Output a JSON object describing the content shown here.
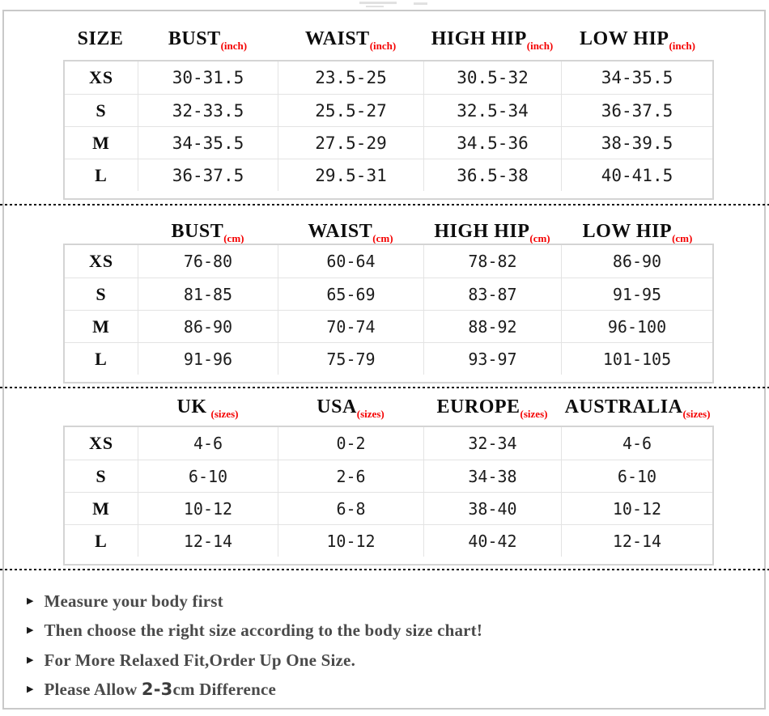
{
  "page": {
    "background": "#ffffff",
    "frame_border_color": "#c9c9c9",
    "accent_red": "#f40000"
  },
  "tables": [
    {
      "id": "body-measurements-inch",
      "corner_label": "SIZE",
      "unit": "(inch)",
      "columns": [
        "BUST",
        "WAIST",
        "HIGH HIP",
        "LOW HIP"
      ],
      "rows": [
        {
          "size": "XS",
          "values": [
            "30-31.5",
            "23.5-25",
            "30.5-32",
            "34-35.5"
          ]
        },
        {
          "size": "S",
          "values": [
            "32-33.5",
            "25.5-27",
            "32.5-34",
            "36-37.5"
          ]
        },
        {
          "size": "M",
          "values": [
            "34-35.5",
            "27.5-29",
            "34.5-36",
            "38-39.5"
          ]
        },
        {
          "size": "L",
          "values": [
            "36-37.5",
            "29.5-31",
            "36.5-38",
            "40-41.5"
          ]
        }
      ]
    },
    {
      "id": "body-measurements-cm",
      "corner_label": "",
      "unit": "(cm)",
      "columns": [
        "BUST",
        "WAIST",
        "HIGH HIP",
        "LOW HIP"
      ],
      "rows": [
        {
          "size": "XS",
          "values": [
            "76-80",
            "60-64",
            "78-82",
            "86-90"
          ]
        },
        {
          "size": "S",
          "values": [
            "81-85",
            "65-69",
            "83-87",
            "91-95"
          ]
        },
        {
          "size": "M",
          "values": [
            "86-90",
            "70-74",
            "88-92",
            "96-100"
          ]
        },
        {
          "size": "L",
          "values": [
            "91-96",
            "75-79",
            "93-97",
            "101-105"
          ]
        }
      ]
    },
    {
      "id": "international-size-conversion",
      "corner_label": "",
      "unit": "(sizes)",
      "columns": [
        "UK",
        "USA",
        "EUROPE",
        "AUSTRALIA"
      ],
      "rows": [
        {
          "size": "XS",
          "values": [
            "4-6",
            "0-2",
            "32-34",
            "4-6"
          ]
        },
        {
          "size": "S",
          "values": [
            "6-10",
            "2-6",
            "34-38",
            "6-10"
          ]
        },
        {
          "size": "M",
          "values": [
            "10-12",
            "6-8",
            "38-40",
            "10-12"
          ]
        },
        {
          "size": "L",
          "values": [
            "12-14",
            "10-12",
            "40-42",
            "12-14"
          ]
        }
      ]
    }
  ],
  "notes": {
    "bullet_glyph": "▶",
    "items": [
      {
        "prefix": "Measure your body first",
        "highlight": "",
        "suffix": ""
      },
      {
        "prefix": "Then choose the right size according to the body size chart!",
        "highlight": "",
        "suffix": ""
      },
      {
        "prefix": "For More Relaxed Fit,Order Up One Size.",
        "highlight": "",
        "suffix": ""
      },
      {
        "prefix": "Please Allow ",
        "highlight": "2-3",
        "suffix": "cm Difference"
      }
    ]
  }
}
